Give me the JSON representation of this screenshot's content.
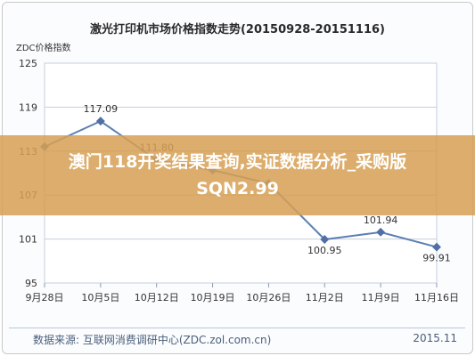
{
  "chart_data": {
    "type": "line",
    "title": "激光打印机市场价格指数走势(20150928-20151116)",
    "ylabel": "ZDC价格指数",
    "xlabel": "",
    "categories": [
      "9月28日",
      "10月5日",
      "10月12日",
      "10月19日",
      "10月26日",
      "11月2日",
      "11月9日",
      "11月16日"
    ],
    "series": [
      {
        "values": [
          113.6,
          117.09,
          111.8,
          110.4,
          108.6,
          100.95,
          101.94,
          99.91
        ],
        "data_labels": [
          "",
          "117.09",
          "111.80",
          "",
          "",
          "100.95",
          "101.94",
          "99.91"
        ]
      }
    ],
    "ylim": [
      95,
      125
    ],
    "yticks": [
      "125",
      "119",
      "113",
      "107",
      "101",
      "95"
    ],
    "grid": true,
    "line_color": "#5b7fb3",
    "marker_color": "#4f6fa6",
    "source": "数据来源:  互联网消费调研中心(ZDC.zol.com.cn)",
    "date_stamp": "2015.11"
  },
  "banner": {
    "text": "澳门118开奖结果查询,实证数据分析_采购版SQN2.99",
    "color": "#d6a054"
  }
}
